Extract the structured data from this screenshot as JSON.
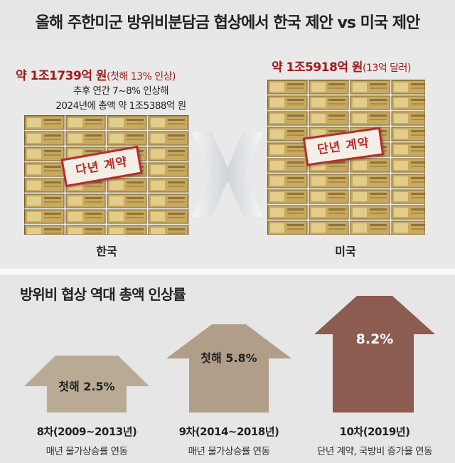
{
  "title": "올해 주한미군 방위비분담금 협상에서 한국 제안 vs 미국 제안",
  "korea": {
    "amount": "약 1조1739억 원",
    "amount_note": "(첫해 13% 인상)",
    "sub_line1": "추후 연간 7~8% 인상해",
    "sub_line2": "2024년에 총액 약 1조5388억 원",
    "stamp": "다년 계약",
    "label": "한국"
  },
  "usa": {
    "amount": "약 1조5918억 원",
    "amount_note": "(13억 달러)",
    "stamp": "단년 계약",
    "label": "미국"
  },
  "section": {
    "title": "방위비 협상 역대 총액 인상률"
  },
  "rounds": [
    {
      "rate": "첫해 2.5%",
      "name": "8차(2009~2013년)",
      "desc": "매년 물가상승률 연동",
      "color": "#b9ab93"
    },
    {
      "rate": "첫해 5.8%",
      "name": "9차(2014~2018년)",
      "desc": "매년 물가상승률 연동",
      "color": "#b09e89"
    },
    {
      "rate": "8.2%",
      "name": "10차(2019년)",
      "desc": "단년 계약, 국방비 증가율 연동",
      "color": "#8b5c4f"
    }
  ]
}
